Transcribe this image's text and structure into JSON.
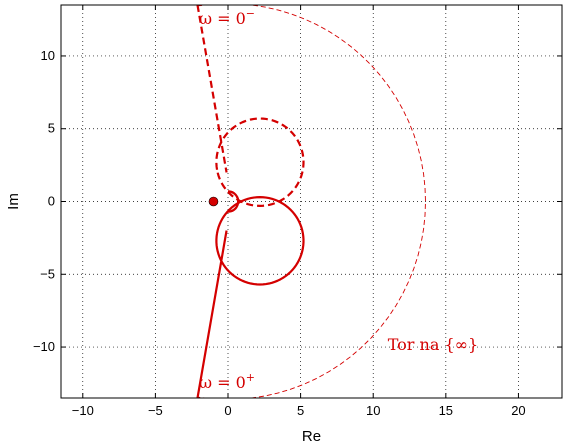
{
  "chart_data": {
    "type": "line",
    "title": "",
    "xlabel": "Re",
    "ylabel": "Im",
    "xlim": [
      -11.5,
      23
    ],
    "ylim": [
      -13.5,
      13.5
    ],
    "xticks": [
      -10,
      -5,
      0,
      5,
      10,
      15,
      20
    ],
    "yticks": [
      -10,
      -5,
      0,
      5,
      10
    ],
    "grid": true,
    "color": "#d40000",
    "annotations": [
      {
        "id": "omega-minus",
        "text": "ω = 0",
        "sup": "−",
        "x": -2.0,
        "y": 12.2
      },
      {
        "id": "omega-plus",
        "text": "ω = 0",
        "sup": "+",
        "x": -2.0,
        "y": -12.8
      },
      {
        "id": "infinity-arc",
        "text": "Tor na {∞}",
        "x": 11.0,
        "y": -10.2
      }
    ],
    "critical_point": {
      "x": -1,
      "y": 0
    },
    "series": [
      {
        "style": "solid",
        "segments": [
          {
            "kind": "line",
            "points": [
              [
                -2.1,
                -13.5
              ],
              [
                -0.1,
                -2.0
              ]
            ]
          },
          {
            "kind": "arc",
            "center": [
              2.2,
              -2.7
            ],
            "radius": 3.0,
            "start_deg": 170,
            "sweep_deg": 360
          },
          {
            "kind": "arc",
            "center": [
              0.0,
              0.0
            ],
            "radius": 0.7,
            "start_deg": 270,
            "sweep_deg": 160
          }
        ]
      },
      {
        "style": "dashed",
        "segments": [
          {
            "kind": "line",
            "points": [
              [
                -2.1,
                13.5
              ],
              [
                -0.1,
                2.0
              ]
            ]
          },
          {
            "kind": "arc",
            "center": [
              2.2,
              2.7
            ],
            "radius": 3.0,
            "start_deg": 190,
            "sweep_deg": -360
          },
          {
            "kind": "arc",
            "center": [
              0.0,
              0.0
            ],
            "radius": 0.7,
            "start_deg": 90,
            "sweep_deg": -160
          }
        ]
      },
      {
        "style": "thin-dashed",
        "segments": [
          {
            "kind": "arc",
            "center": [
              0.0,
              0.0
            ],
            "radius": 13.6,
            "start_deg": 99,
            "sweep_deg": -198
          }
        ]
      }
    ]
  }
}
